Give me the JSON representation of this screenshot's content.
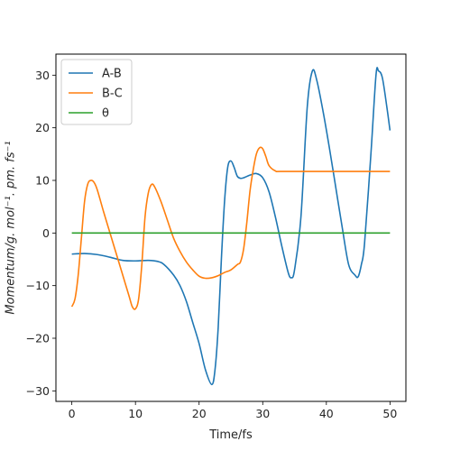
{
  "chart_data": {
    "type": "line",
    "title": "",
    "xlabel": "Time/fs",
    "ylabel": "Momentum/g. mol⁻¹. pm. fs⁻¹",
    "xlim": [
      -2.5,
      52.5
    ],
    "ylim": [
      -32,
      34
    ],
    "xticks": [
      0,
      10,
      20,
      30,
      40,
      50
    ],
    "yticks": [
      -30,
      -20,
      -10,
      0,
      10,
      20,
      30
    ],
    "legend_position": "top-left",
    "grid": false,
    "series": [
      {
        "name": "A-B",
        "color": "#1f77b4",
        "points": [
          [
            0,
            -4
          ],
          [
            2,
            -3.9
          ],
          [
            4,
            -4.1
          ],
          [
            6,
            -4.6
          ],
          [
            8,
            -5.2
          ],
          [
            10,
            -5.3
          ],
          [
            12,
            -5.2
          ],
          [
            13.5,
            -5.4
          ],
          [
            14.5,
            -6
          ],
          [
            16,
            -8
          ],
          [
            17,
            -10
          ],
          [
            18,
            -13
          ],
          [
            19,
            -17
          ],
          [
            20,
            -21
          ],
          [
            21,
            -26
          ],
          [
            22,
            -28.8
          ],
          [
            22.5,
            -26
          ],
          [
            23,
            -18
          ],
          [
            23.5,
            -5
          ],
          [
            24,
            6
          ],
          [
            24.5,
            12.5
          ],
          [
            25,
            13.7
          ],
          [
            25.5,
            12.5
          ],
          [
            26,
            10.8
          ],
          [
            26.5,
            10.4
          ],
          [
            27,
            10.5
          ],
          [
            28,
            11
          ],
          [
            29,
            11.3
          ],
          [
            30,
            10.5
          ],
          [
            31,
            7.8
          ],
          [
            32,
            3
          ],
          [
            33,
            -2.5
          ],
          [
            34,
            -7.5
          ],
          [
            34.5,
            -8.5
          ],
          [
            35,
            -7
          ],
          [
            36,
            3
          ],
          [
            37,
            24
          ],
          [
            37.8,
            30.8
          ],
          [
            38.5,
            29
          ],
          [
            39.5,
            23
          ],
          [
            40.5,
            16
          ],
          [
            41.5,
            8.5
          ],
          [
            42.5,
            1
          ],
          [
            43.5,
            -6
          ],
          [
            44.5,
            -8
          ],
          [
            45,
            -8.3
          ],
          [
            45.5,
            -6
          ],
          [
            46,
            -2
          ],
          [
            47,
            15
          ],
          [
            47.8,
            30
          ],
          [
            48.2,
            30.8
          ],
          [
            48.8,
            29.5
          ],
          [
            49.5,
            24
          ],
          [
            50,
            19.5
          ]
        ]
      },
      {
        "name": "B-C",
        "color": "#ff7f0e",
        "points": [
          [
            0,
            -14
          ],
          [
            0.5,
            -12.5
          ],
          [
            1,
            -8
          ],
          [
            1.5,
            -1
          ],
          [
            2,
            6
          ],
          [
            2.5,
            9.3
          ],
          [
            3,
            10
          ],
          [
            3.5,
            9.6
          ],
          [
            4,
            8.2
          ],
          [
            5,
            4
          ],
          [
            6,
            0
          ],
          [
            7,
            -4
          ],
          [
            8,
            -8
          ],
          [
            9,
            -12
          ],
          [
            9.5,
            -14
          ],
          [
            10,
            -14.4
          ],
          [
            10.5,
            -12.5
          ],
          [
            11,
            -6
          ],
          [
            11.5,
            3
          ],
          [
            12,
            7.5
          ],
          [
            12.5,
            9.2
          ],
          [
            13,
            8.8
          ],
          [
            14,
            6
          ],
          [
            15,
            2.5
          ],
          [
            16,
            -1
          ],
          [
            17,
            -3.5
          ],
          [
            18,
            -5.5
          ],
          [
            19,
            -7
          ],
          [
            20,
            -8.2
          ],
          [
            21,
            -8.6
          ],
          [
            22,
            -8.5
          ],
          [
            23,
            -8.1
          ],
          [
            24,
            -7.5
          ],
          [
            25,
            -7
          ],
          [
            26,
            -6
          ],
          [
            26.5,
            -5.5
          ],
          [
            27,
            -3
          ],
          [
            27.5,
            2
          ],
          [
            28,
            8
          ],
          [
            28.5,
            12
          ],
          [
            29,
            15
          ],
          [
            29.5,
            16.2
          ],
          [
            30,
            16
          ],
          [
            30.5,
            14.5
          ],
          [
            31,
            12.8
          ],
          [
            32,
            11.8
          ],
          [
            33,
            11.7
          ],
          [
            40,
            11.7
          ],
          [
            50,
            11.7
          ]
        ]
      },
      {
        "name": "θ",
        "color": "#2ca02c",
        "points": [
          [
            0,
            0
          ],
          [
            50,
            0
          ]
        ]
      }
    ]
  }
}
